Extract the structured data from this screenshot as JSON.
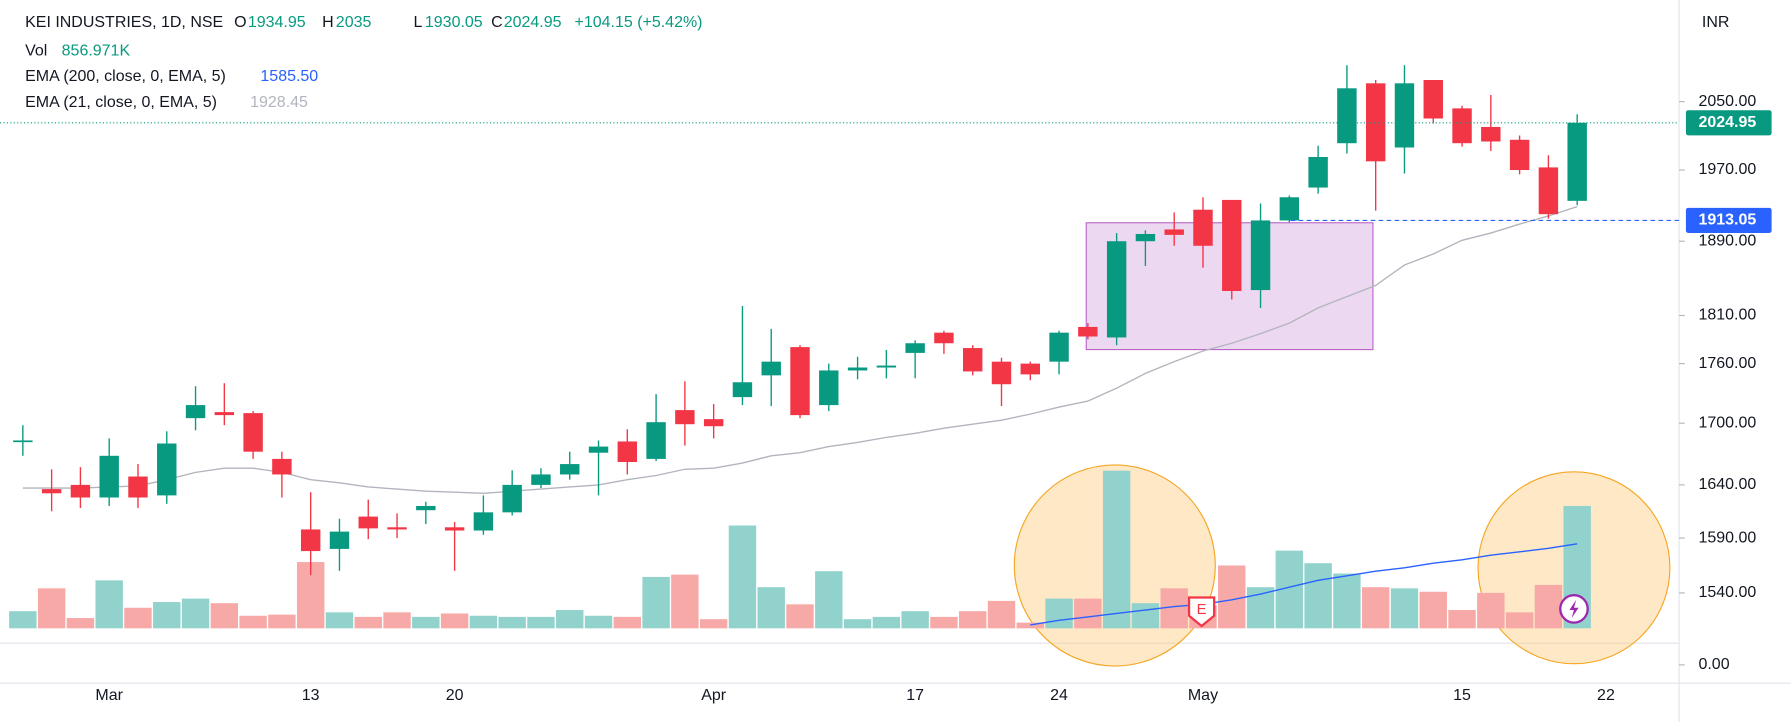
{
  "chart_data": {
    "type": "candlestick",
    "title": "KEI INDUSTRIES, 1D, NSE",
    "currency": "INR",
    "header": {
      "o": "O",
      "h": "H",
      "l": "L",
      "c": "C",
      "change": "+104.15 (+5.42%)",
      "vol_label": "Vol",
      "vol_value": "856.971K",
      "ema200_label": "EMA (200, close, 0, EMA, 5)",
      "ema200_value": "1585.50",
      "ema21_label": "EMA (21, close, 0, EMA, 5)"
    },
    "earnings_marker": "E",
    "categories": [
      null,
      null,
      null,
      "Mar",
      null,
      null,
      null,
      null,
      null,
      null,
      "13",
      null,
      null,
      null,
      null,
      "20",
      null,
      null,
      null,
      null,
      null,
      null,
      null,
      null,
      "Apr",
      null,
      null,
      null,
      null,
      null,
      null,
      "17",
      null,
      null,
      null,
      null,
      "24",
      null,
      null,
      null,
      null,
      "May",
      null,
      null,
      null,
      null,
      null,
      null,
      null,
      null,
      "15",
      null,
      null,
      null,
      null,
      "22"
    ],
    "open": [
      1682,
      1636,
      1640,
      1628,
      1648,
      1630,
      1705,
      1711,
      1710,
      1665,
      1598,
      1580,
      1610,
      1600,
      1616,
      1600,
      1597,
      1614,
      1640,
      1650,
      1671,
      1682,
      1665,
      1713,
      1704,
      1726,
      1748,
      1777,
      1718,
      1753,
      1756,
      1771,
      1792,
      1776,
      1762,
      1760,
      1762,
      1798,
      1787,
      1890,
      1903,
      1925,
      1936,
      1837,
      1913,
      1950,
      2001,
      2072,
      1996,
      2076,
      2042,
      2020,
      2005,
      1973,
      1934.95,
      null
    ],
    "high": [
      1698,
      1655,
      1657,
      1685,
      1660,
      1692,
      1737,
      1740,
      1712,
      1672,
      1633,
      1608,
      1626,
      1613,
      1624,
      1605,
      1630,
      1654,
      1656,
      1672,
      1683,
      1694,
      1729,
      1742,
      1719,
      1820,
      1796,
      1779,
      1760,
      1767,
      1774,
      1784,
      1794,
      1779,
      1766,
      1762,
      1794,
      1802,
      1899,
      1902,
      1922,
      1939,
      1936,
      1932,
      1941,
      1998,
      2094,
      2076,
      2094,
      2076,
      2045,
      2058,
      2010,
      1987,
      2035,
      null
    ],
    "low": [
      1668,
      1615,
      1618,
      1620,
      1618,
      1622,
      1693,
      1698,
      1665,
      1628,
      1556,
      1560,
      1589,
      1590,
      1603,
      1560,
      1593,
      1611,
      1637,
      1645,
      1630,
      1650,
      1663,
      1678,
      1685,
      1718,
      1717,
      1705,
      1712,
      1744,
      1745,
      1745,
      1770,
      1748,
      1717,
      1743,
      1749,
      1785,
      1779,
      1863,
      1885,
      1861,
      1827,
      1818,
      1911,
      1943,
      1989,
      1924,
      1966,
      2024,
      1997,
      1992,
      1965,
      1915,
      1930.05,
      null
    ],
    "close": [
      1683,
      1632,
      1628,
      1668,
      1628,
      1680,
      1718,
      1708,
      1672,
      1650,
      1578,
      1596,
      1599,
      1598,
      1620,
      1597,
      1614,
      1640,
      1650,
      1660,
      1677,
      1662,
      1701,
      1699,
      1697,
      1741,
      1762,
      1708,
      1753,
      1756,
      1758,
      1781,
      1781,
      1752,
      1739,
      1749,
      1792,
      1788,
      1890,
      1898,
      1897,
      1885,
      1836,
      1913,
      1939,
      1985,
      2066,
      1980,
      2072,
      2030,
      2001,
      2003,
      1970,
      1920,
      2024.95,
      null
    ],
    "volume": {
      "name": "Vol",
      "axis": "y2",
      "up_color": "#92d2cc",
      "down_color": "#f7a9a7",
      "values": [
        120000,
        280000,
        72000,
        336000,
        144000,
        184000,
        208000,
        176000,
        88000,
        96000,
        464000,
        112000,
        80000,
        112000,
        80000,
        104000,
        88000,
        80000,
        80000,
        128000,
        88000,
        80000,
        360000,
        376000,
        64000,
        720000,
        288000,
        168000,
        400000,
        64000,
        80000,
        120000,
        80000,
        120000,
        192000,
        40000,
        208000,
        208000,
        1104000,
        176000,
        280000,
        160000,
        440000,
        288000,
        544000,
        456000,
        384000,
        288000,
        280000,
        256000,
        128000,
        248000,
        112000,
        304000,
        856971,
        null
      ]
    },
    "ema21": {
      "name": "EMA (21, close, 0, EMA, 5)",
      "color": "#b2b5be",
      "values": [
        1637,
        1637,
        1637,
        1638,
        1639,
        1645,
        1652,
        1656,
        1656,
        1652,
        1645,
        1642,
        1638,
        1636,
        1634,
        1633,
        1632,
        1634,
        1636,
        1638,
        1640,
        1645,
        1649,
        1655,
        1656,
        1661,
        1668,
        1671,
        1677,
        1681,
        1686,
        1690,
        1695,
        1699,
        1703,
        1709,
        1716,
        1722,
        1735,
        1750,
        1762,
        1773,
        1781,
        1791,
        1802,
        1818,
        1830,
        1842,
        1864,
        1876,
        1891,
        1899,
        1909,
        1918,
        1928.45,
        null
      ]
    },
    "volume_ma": {
      "color": "#2962ff",
      "axis": "y2",
      "values": [
        null,
        null,
        null,
        null,
        null,
        null,
        null,
        null,
        null,
        null,
        null,
        null,
        null,
        null,
        null,
        null,
        null,
        null,
        null,
        null,
        null,
        null,
        null,
        null,
        null,
        null,
        null,
        null,
        null,
        null,
        null,
        null,
        null,
        null,
        null,
        24000,
        56000,
        80000,
        104000,
        128000,
        152000,
        168000,
        200000,
        240000,
        288000,
        336000,
        368000,
        400000,
        424000,
        456000,
        480000,
        512000,
        536000,
        560000,
        592000,
        null
      ]
    },
    "up_color": "#089981",
    "down_color": "#f23645",
    "marker_price": 1913.05,
    "log_scale": true,
    "ylim": [
      1508.6,
      2175
    ],
    "yticks": [
      {
        "value": 1540,
        "label": "1540.00"
      },
      {
        "value": 1590,
        "label": "1590.00"
      },
      {
        "value": 1640,
        "label": "1640.00"
      },
      {
        "value": 1700,
        "label": "1700.00"
      },
      {
        "value": 1760,
        "label": "1760.00"
      },
      {
        "value": 1810,
        "label": "1810.00"
      },
      {
        "value": 1890,
        "label": "1890.00"
      },
      {
        "value": 1970,
        "label": "1970.00"
      },
      {
        "value": 2050,
        "label": "2050.00"
      }
    ],
    "y2lim": [
      0,
      2000000
    ],
    "lower_pane_yticks": [
      {
        "value": 0,
        "label": "0.00"
      }
    ]
  }
}
